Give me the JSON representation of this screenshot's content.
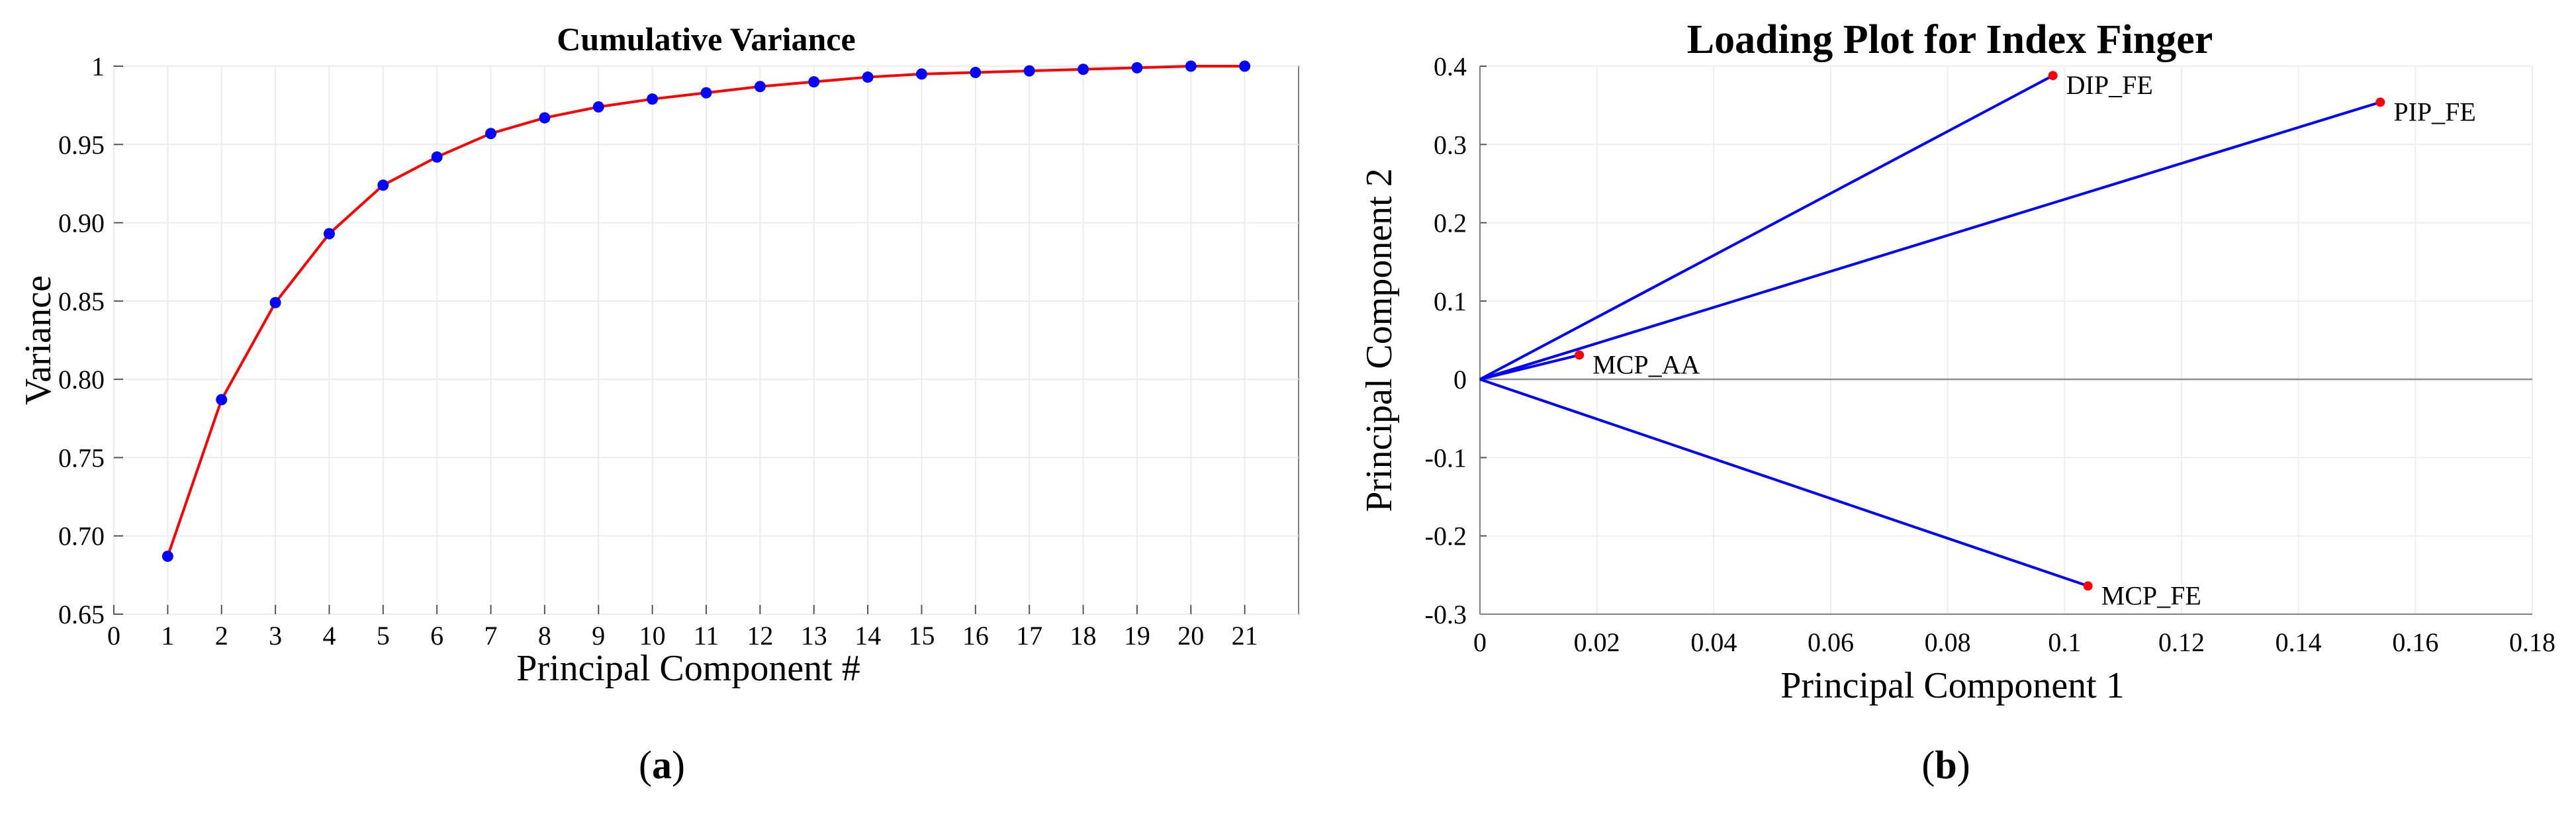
{
  "chart_data": [
    {
      "type": "line",
      "title": "Cumulative Variance",
      "xlabel": "Principal Component #",
      "ylabel": "Variance",
      "xlim": [
        0,
        22
      ],
      "ylim": [
        0.65,
        1.0
      ],
      "x_ticks": [
        0,
        1,
        2,
        3,
        4,
        5,
        6,
        7,
        8,
        9,
        10,
        11,
        12,
        13,
        14,
        15,
        16,
        17,
        18,
        19,
        20,
        21
      ],
      "y_ticks": [
        "0.65",
        "0.70",
        "0.75",
        "0.80",
        "0.85",
        "0.90",
        "0.95",
        "1"
      ],
      "grid": true,
      "line_color": "#ff0000",
      "marker_color": "#0000ff",
      "x": [
        1,
        2,
        3,
        4,
        5,
        6,
        7,
        8,
        9,
        10,
        11,
        12,
        13,
        14,
        15,
        16,
        17,
        18,
        19,
        20,
        21
      ],
      "values": [
        0.687,
        0.787,
        0.849,
        0.893,
        0.924,
        0.942,
        0.957,
        0.967,
        0.974,
        0.979,
        0.983,
        0.987,
        0.99,
        0.993,
        0.995,
        0.996,
        0.997,
        0.998,
        0.999,
        1.0,
        1.0
      ],
      "panel_label": "a"
    },
    {
      "type": "scatter",
      "title": "Loading Plot for Index Finger",
      "xlabel": "Principal Component 1",
      "ylabel": "Principal Component 2",
      "xlim": [
        0,
        0.18
      ],
      "ylim": [
        -0.3,
        0.4
      ],
      "x_ticks": [
        "0",
        "0.02",
        "0.04",
        "0.06",
        "0.08",
        "0.1",
        "0.12",
        "0.14",
        "0.16",
        "0.18"
      ],
      "y_ticks": [
        "-0.3",
        "-0.2",
        "-0.1",
        "0",
        "0.1",
        "0.2",
        "0.3",
        "0.4"
      ],
      "grid": true,
      "vector_color": "#0000ff",
      "point_color": "#ff0000",
      "points": [
        {
          "label": "DIP_FE",
          "x": 0.098,
          "y": 0.388
        },
        {
          "label": "PIP_FE",
          "x": 0.154,
          "y": 0.354
        },
        {
          "label": "MCP_AA",
          "x": 0.017,
          "y": 0.031
        },
        {
          "label": "MCP_FE",
          "x": 0.104,
          "y": -0.264
        }
      ],
      "panel_label": "b"
    }
  ]
}
